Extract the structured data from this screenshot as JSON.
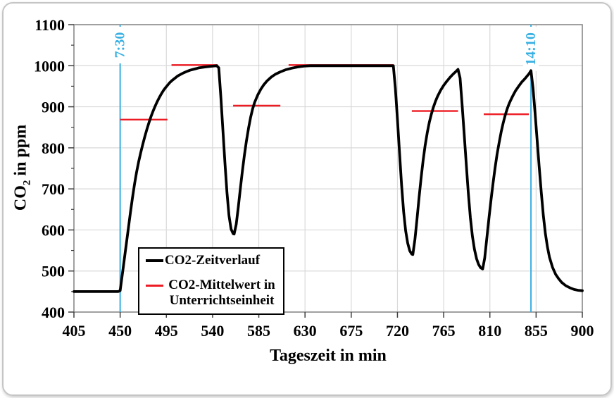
{
  "colors": {
    "grid": "#d9d9d9",
    "frame": "#808080",
    "tick": "#3f3f3f",
    "text": "#000000",
    "series_black": "#000000",
    "mean_red": "#ed1c24",
    "marker_cyan": "#38b0e3"
  },
  "chart_data": {
    "type": "line",
    "title": "",
    "xlabel": "Tageszeit in min",
    "ylabel": "CO₂ in ppm",
    "ylabel_parts": {
      "pre": "CO",
      "sub": "2",
      "post": " in ppm"
    },
    "xlim": [
      405,
      900
    ],
    "ylim": [
      400,
      1100
    ],
    "xticks": [
      405,
      450,
      495,
      540,
      585,
      630,
      675,
      720,
      765,
      810,
      855,
      900
    ],
    "yticks": [
      400,
      500,
      600,
      700,
      800,
      900,
      1000,
      1100
    ],
    "yticks_minor": [
      450,
      550,
      650,
      750,
      850,
      950,
      1050
    ],
    "grid": true,
    "legend_position": "lower-left-inside",
    "series": [
      {
        "name": "CO2-Zeitverlauf",
        "color": "#000000",
        "width": 3.8,
        "points": [
          [
            405,
            450
          ],
          [
            448,
            450
          ],
          [
            450,
            452
          ],
          [
            452,
            490
          ],
          [
            454,
            528
          ],
          [
            456,
            566
          ],
          [
            458,
            604
          ],
          [
            460,
            642
          ],
          [
            462,
            678
          ],
          [
            464,
            712
          ],
          [
            466,
            741
          ],
          [
            468,
            766
          ],
          [
            470,
            788
          ],
          [
            472,
            808
          ],
          [
            474,
            827
          ],
          [
            476,
            845
          ],
          [
            478,
            861
          ],
          [
            480,
            876
          ],
          [
            482,
            889
          ],
          [
            484,
            901
          ],
          [
            486,
            912
          ],
          [
            488,
            922
          ],
          [
            490,
            931
          ],
          [
            492,
            939
          ],
          [
            494,
            946
          ],
          [
            496,
            952
          ],
          [
            498,
            958
          ],
          [
            500,
            963
          ],
          [
            502,
            967
          ],
          [
            504,
            971
          ],
          [
            506,
            975
          ],
          [
            509,
            979
          ],
          [
            512,
            983
          ],
          [
            515,
            986
          ],
          [
            518,
            989
          ],
          [
            521,
            991
          ],
          [
            524,
            993
          ],
          [
            527,
            995
          ],
          [
            530,
            996
          ],
          [
            533,
            997
          ],
          [
            536,
            998
          ],
          [
            540,
            999
          ],
          [
            544,
            1000
          ],
          [
            546,
            995
          ],
          [
            548,
            925
          ],
          [
            550,
            845
          ],
          [
            552,
            765
          ],
          [
            554,
            692
          ],
          [
            556,
            635
          ],
          [
            558,
            602
          ],
          [
            560,
            591
          ],
          [
            561,
            590
          ],
          [
            563,
            614
          ],
          [
            565,
            655
          ],
          [
            567,
            700
          ],
          [
            569,
            743
          ],
          [
            571,
            782
          ],
          [
            573,
            817
          ],
          [
            575,
            848
          ],
          [
            577,
            874
          ],
          [
            579,
            895
          ],
          [
            581,
            911
          ],
          [
            584,
            929
          ],
          [
            587,
            943
          ],
          [
            590,
            954
          ],
          [
            593,
            963
          ],
          [
            597,
            972
          ],
          [
            601,
            979
          ],
          [
            606,
            985
          ],
          [
            611,
            990
          ],
          [
            617,
            994
          ],
          [
            623,
            997
          ],
          [
            629,
            999
          ],
          [
            635,
            1000
          ],
          [
            716,
            1000
          ],
          [
            718,
            945
          ],
          [
            720,
            868
          ],
          [
            722,
            788
          ],
          [
            724,
            710
          ],
          [
            726,
            645
          ],
          [
            728,
            598
          ],
          [
            730,
            568
          ],
          [
            732,
            549
          ],
          [
            734,
            541
          ],
          [
            735,
            540
          ],
          [
            737,
            577
          ],
          [
            739,
            626
          ],
          [
            741,
            678
          ],
          [
            743,
            726
          ],
          [
            745,
            769
          ],
          [
            747,
            806
          ],
          [
            749,
            837
          ],
          [
            751,
            862
          ],
          [
            753,
            882
          ],
          [
            755,
            899
          ],
          [
            757,
            913
          ],
          [
            759,
            925
          ],
          [
            762,
            940
          ],
          [
            765,
            952
          ],
          [
            768,
            962
          ],
          [
            771,
            971
          ],
          [
            774,
            979
          ],
          [
            777,
            986
          ],
          [
            779,
            991
          ],
          [
            781,
            970
          ],
          [
            783,
            905
          ],
          [
            785,
            832
          ],
          [
            787,
            760
          ],
          [
            789,
            690
          ],
          [
            791,
            630
          ],
          [
            793,
            585
          ],
          [
            795,
            553
          ],
          [
            797,
            530
          ],
          [
            799,
            516
          ],
          [
            801,
            508
          ],
          [
            803,
            505
          ],
          [
            805,
            532
          ],
          [
            807,
            580
          ],
          [
            809,
            627
          ],
          [
            811,
            671
          ],
          [
            813,
            712
          ],
          [
            815,
            750
          ],
          [
            817,
            784
          ],
          [
            819,
            813
          ],
          [
            821,
            839
          ],
          [
            823,
            861
          ],
          [
            825,
            880
          ],
          [
            827,
            896
          ],
          [
            829,
            909
          ],
          [
            831,
            920
          ],
          [
            833,
            930
          ],
          [
            835,
            939
          ],
          [
            838,
            950
          ],
          [
            841,
            960
          ],
          [
            844,
            968
          ],
          [
            846,
            974
          ],
          [
            848,
            980
          ],
          [
            850,
            988
          ],
          [
            852,
            945
          ],
          [
            854,
            885
          ],
          [
            856,
            820
          ],
          [
            858,
            755
          ],
          [
            860,
            692
          ],
          [
            862,
            636
          ],
          [
            864,
            592
          ],
          [
            866,
            559
          ],
          [
            868,
            534
          ],
          [
            871,
            509
          ],
          [
            874,
            492
          ],
          [
            877,
            481
          ],
          [
            880,
            472
          ],
          [
            884,
            464
          ],
          [
            888,
            459
          ],
          [
            892,
            455
          ],
          [
            896,
            453
          ],
          [
            900,
            452
          ]
        ]
      }
    ],
    "mean_segments": {
      "name": "CO2-Mittelwert in Unterrichtseinheit",
      "color": "#ed1c24",
      "width": 2.4,
      "segments": [
        {
          "from": 450,
          "to": 496,
          "value": 867
        },
        {
          "from": 500,
          "to": 545,
          "value": 1000
        },
        {
          "from": 560,
          "to": 606,
          "value": 901
        },
        {
          "from": 614,
          "to": 716,
          "value": 1000
        },
        {
          "from": 734,
          "to": 779,
          "value": 888
        },
        {
          "from": 804,
          "to": 848,
          "value": 880
        }
      ]
    },
    "time_markers": [
      {
        "time_min": 450,
        "label": "7:30",
        "color": "#38b0e3"
      },
      {
        "time_min": 850,
        "label": "14:10",
        "color": "#38b0e3"
      }
    ]
  },
  "legend": {
    "items": [
      {
        "label": "CO2-Zeitverlauf",
        "color": "#000000",
        "style": "thick-line"
      },
      {
        "label_line1": "CO2-Mittelwert in",
        "label_line2": "Unterrichtseinheit",
        "color": "#ed1c24",
        "style": "thin-line"
      }
    ]
  }
}
